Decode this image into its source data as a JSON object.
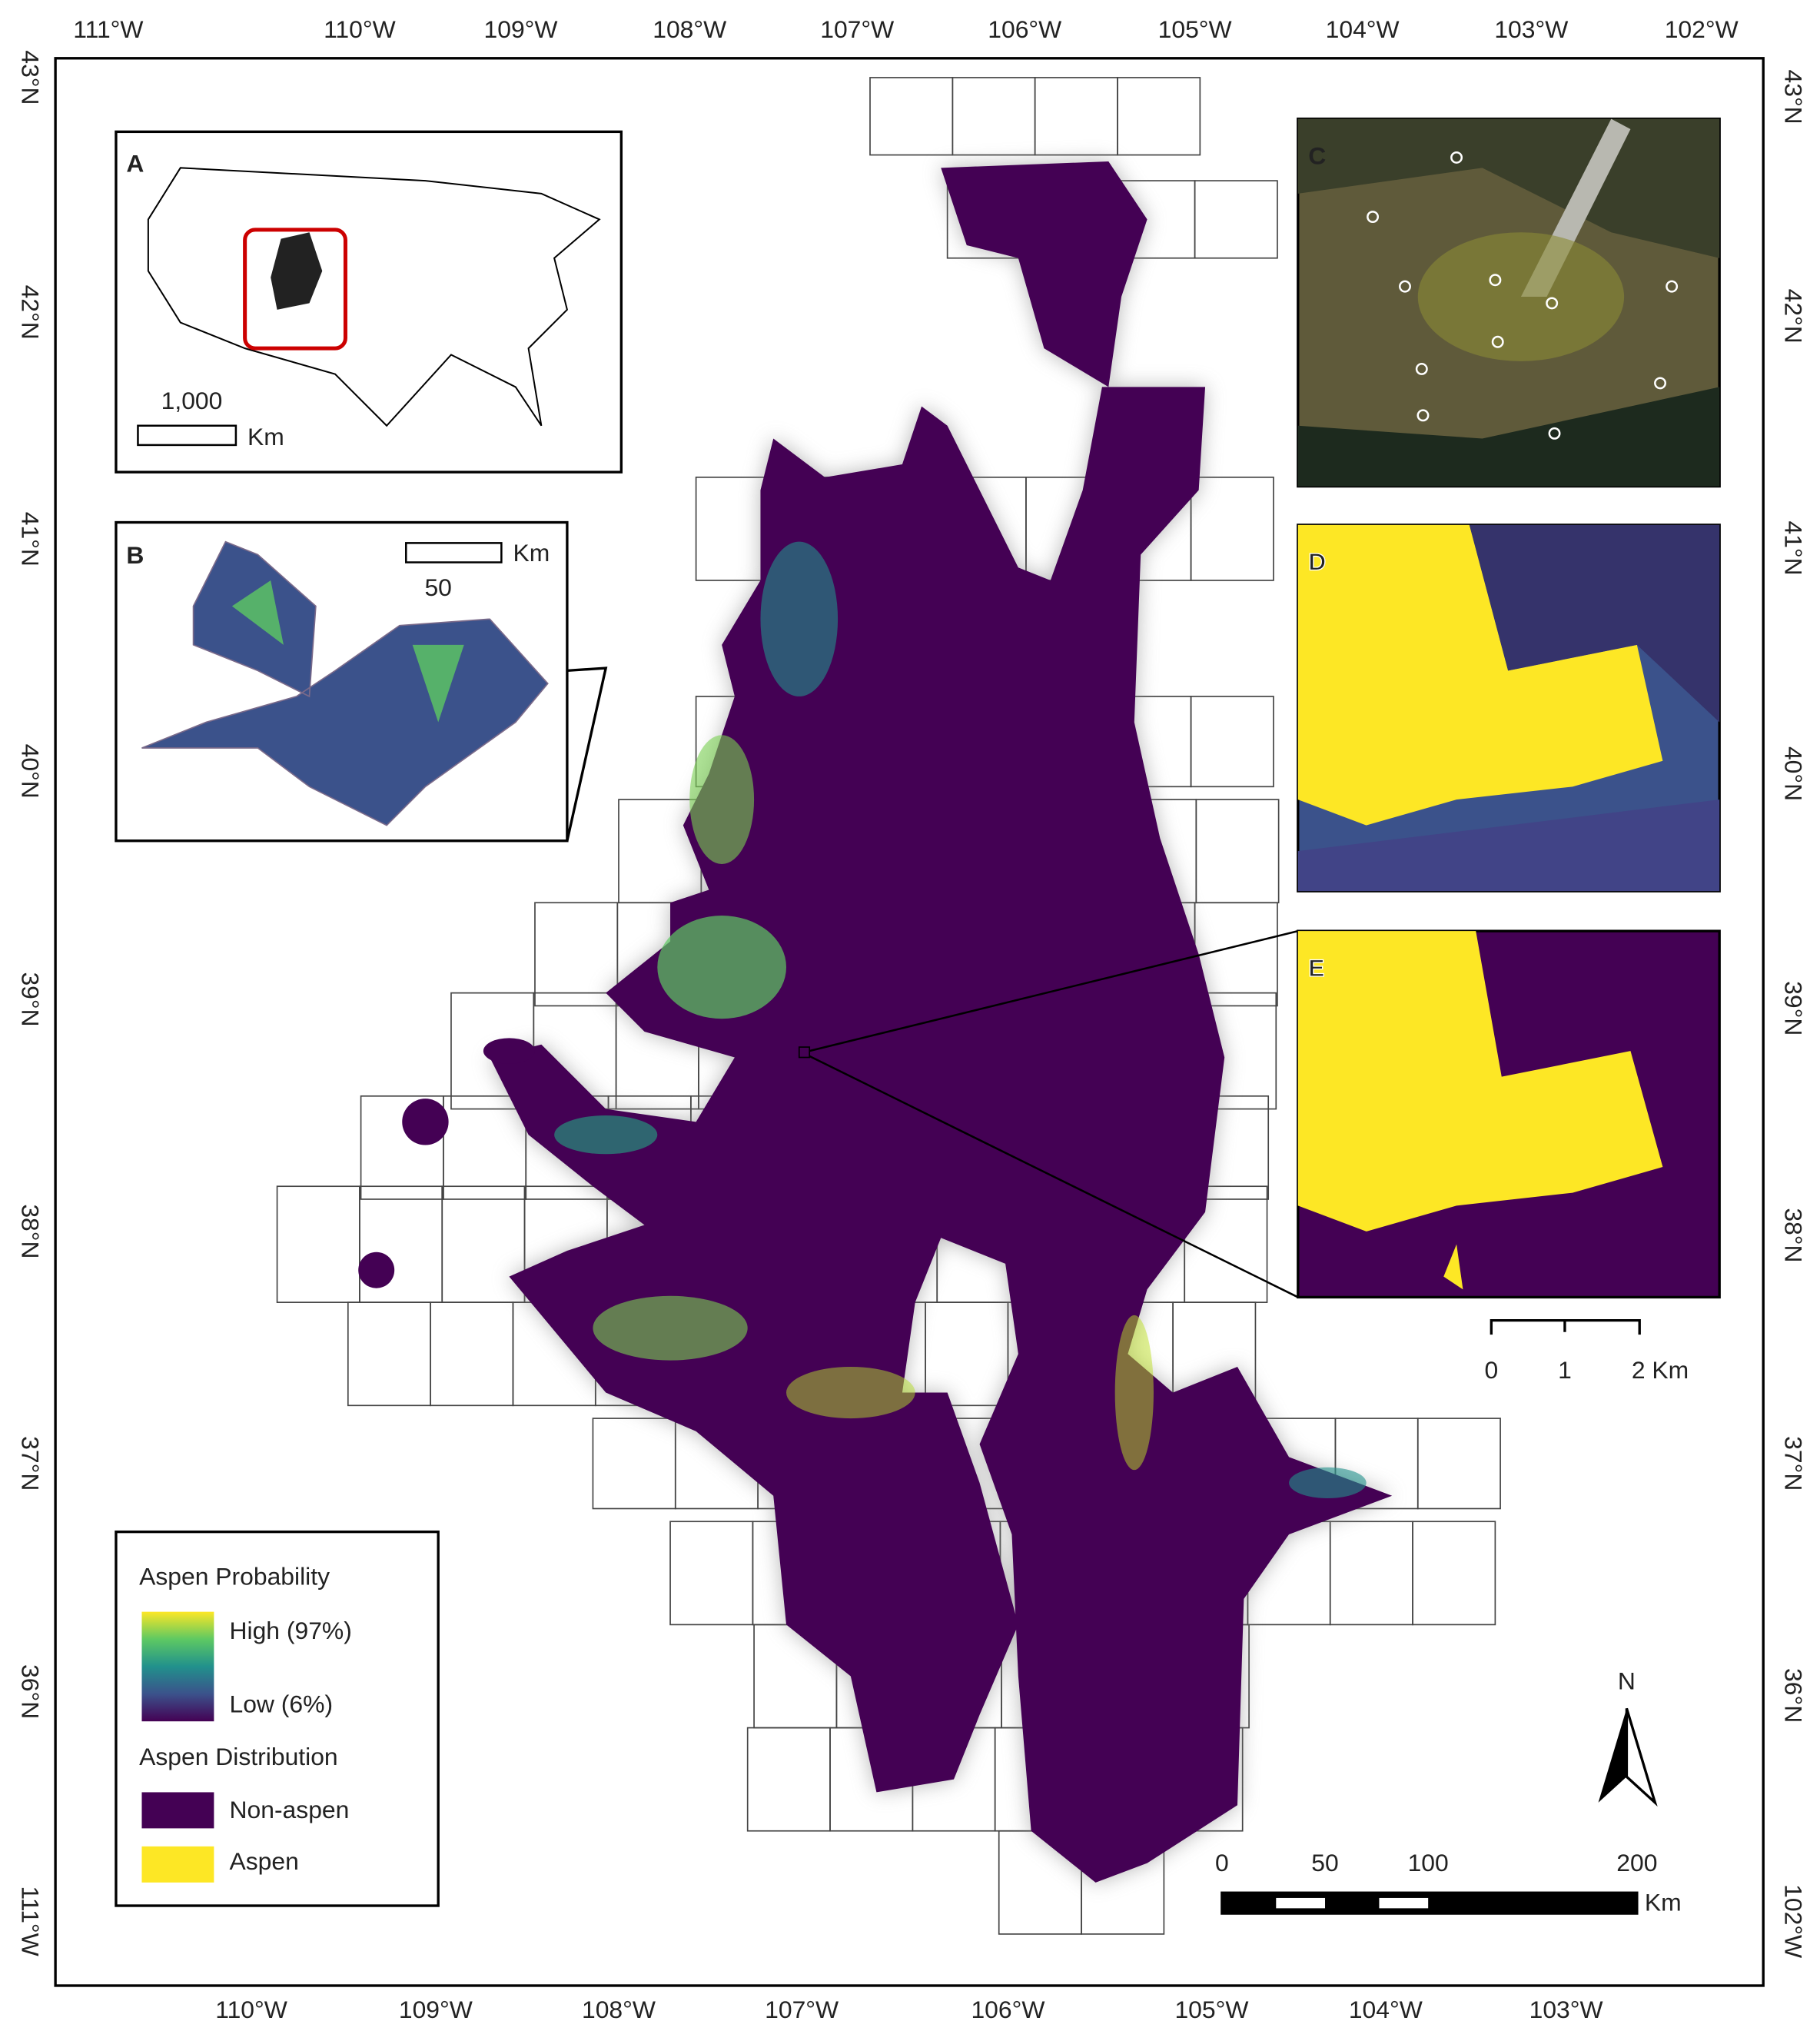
{
  "frame": {
    "top_labels": [
      "111°W",
      "110°W",
      "109°W",
      "108°W",
      "107°W",
      "106°W",
      "105°W",
      "104°W",
      "103°W",
      "102°W"
    ],
    "bottom_labels": [
      "110°W",
      "109°W",
      "108°W",
      "107°W",
      "106°W",
      "105°W",
      "104°W",
      "103°W"
    ],
    "left_labels": [
      "43°N",
      "42°N",
      "41°N",
      "40°N",
      "39°N",
      "38°N",
      "37°N",
      "36°N",
      "111°W"
    ],
    "right_labels": [
      "43°N",
      "42°N",
      "41°N",
      "40°N",
      "39°N",
      "38°N",
      "37°N",
      "36°N",
      "102°W"
    ]
  },
  "insets": {
    "a": {
      "label": "A",
      "scale_value": "1,000",
      "scale_unit": "Km"
    },
    "b": {
      "label": "B",
      "scale_value": "50",
      "scale_unit": "Km"
    },
    "c": {
      "label": "C"
    },
    "d": {
      "label": "D"
    },
    "e": {
      "label": "E"
    }
  },
  "inset_scale": {
    "labels": [
      "0",
      "1",
      "2 Km"
    ]
  },
  "legend": {
    "probability_title": "Aspen Probability",
    "high": "High (97%)",
    "low": "Low (6%)",
    "distribution_title": "Aspen Distribution",
    "classes": [
      {
        "label": "Non-aspen",
        "color": "#440154"
      },
      {
        "label": "Aspen",
        "color": "#fde725"
      }
    ]
  },
  "north": "N",
  "scale_bar": {
    "labels": [
      "0",
      "50",
      "100",
      "200"
    ],
    "unit": "Km"
  }
}
